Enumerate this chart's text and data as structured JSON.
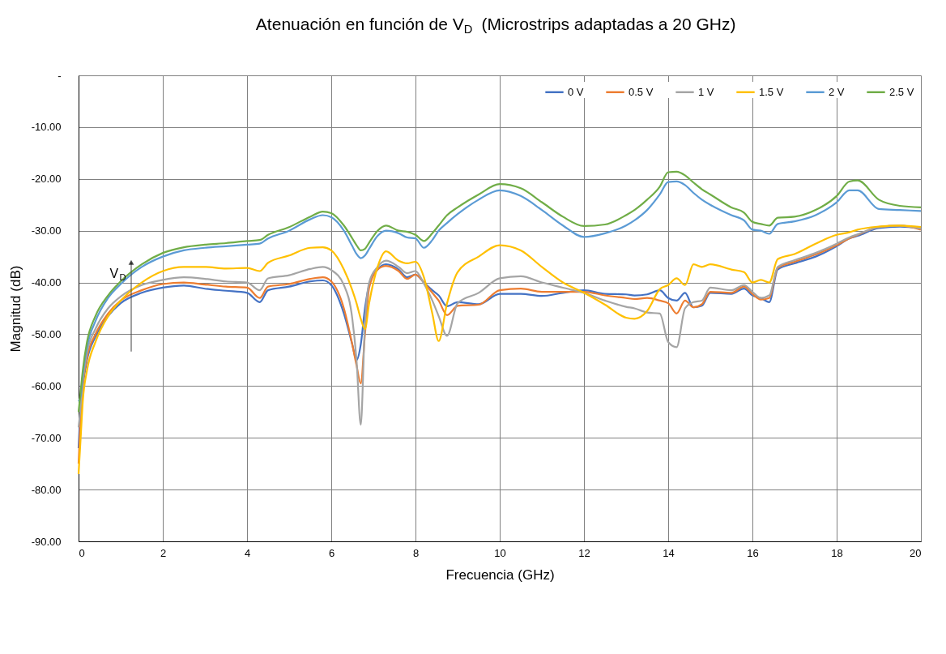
{
  "chart_data": {
    "type": "line",
    "title": "Atenuación en función de V$_{D}$  (Microstrips adaptadas a 20 GHz)",
    "xlabel": "Frecuencia (GHz)",
    "ylabel": "Magnitud (dB)",
    "x": [
      0,
      0.05,
      0.1,
      0.2,
      0.4,
      0.7,
      1,
      1.5,
      2,
      2.5,
      3,
      3.5,
      4,
      4.3,
      4.5,
      5,
      5.5,
      5.8,
      6,
      6.3,
      6.5,
      6.6,
      6.7,
      6.8,
      6.9,
      7.1,
      7.3,
      7.6,
      7.8,
      8,
      8.2,
      8.4,
      8.55,
      8.75,
      9,
      9.5,
      10,
      10.5,
      11,
      11.5,
      12,
      12.5,
      13,
      13.2,
      13.5,
      13.8,
      14,
      14.2,
      14.4,
      14.6,
      14.8,
      15,
      15.5,
      15.8,
      16,
      16.2,
      16.4,
      16.6,
      17,
      17.5,
      18,
      18.3,
      18.5,
      19,
      19.5,
      20
    ],
    "series": [
      {
        "name": "0 V",
        "color": "#4472c4",
        "values": [
          -72,
          -64,
          -60,
          -55,
          -50.5,
          -46.5,
          -44,
          -42,
          -41,
          -40.6,
          -41.2,
          -41.6,
          -42,
          -43.8,
          -41.5,
          -40.8,
          -39.8,
          -39.6,
          -40.5,
          -46,
          -52,
          -55,
          -52,
          -45,
          -40.5,
          -37.5,
          -36.5,
          -37.5,
          -39,
          -38.5,
          -40,
          -41.5,
          -42.5,
          -44.6,
          -43.8,
          -44.2,
          -42.2,
          -42.2,
          -42.6,
          -42,
          -41.5,
          -42.2,
          -42.3,
          -42.5,
          -42.3,
          -41.5,
          -43,
          -43.5,
          -42,
          -44.8,
          -44.5,
          -42,
          -42.2,
          -41.2,
          -42.5,
          -43,
          -43.8,
          -37.5,
          -36.3,
          -35,
          -33,
          -31.5,
          -31,
          -29.5,
          -29.2,
          -29.5
        ]
      },
      {
        "name": "0.5 V",
        "color": "#ed7d31",
        "values": [
          -75,
          -66,
          -60,
          -54.5,
          -50,
          -46,
          -43.5,
          -41.5,
          -40.3,
          -40,
          -40.4,
          -40.8,
          -41,
          -43,
          -40.8,
          -40.3,
          -39.3,
          -39,
          -39.8,
          -45,
          -52,
          -56,
          -59.5,
          -50,
          -41,
          -37.5,
          -36.8,
          -37.8,
          -39.3,
          -38.5,
          -40,
          -42,
          -43.5,
          -46.3,
          -44.5,
          -44.3,
          -41.5,
          -41.2,
          -41.8,
          -41.8,
          -41.8,
          -42.5,
          -43,
          -43.2,
          -43,
          -43.5,
          -44,
          -46,
          -43.5,
          -44.8,
          -44.2,
          -41.8,
          -42,
          -40.8,
          -42.2,
          -43.3,
          -43,
          -37.2,
          -36,
          -34.6,
          -32.8,
          -31.5,
          -30.8,
          -29.3,
          -29,
          -29.8
        ]
      },
      {
        "name": "1 V",
        "color": "#a5a5a5",
        "values": [
          -68,
          -64,
          -59,
          -53.5,
          -49,
          -45,
          -42.7,
          -40.5,
          -39.5,
          -39,
          -39.3,
          -39.8,
          -40,
          -41.5,
          -39.2,
          -38.6,
          -37.4,
          -37,
          -37.6,
          -40.5,
          -47,
          -55,
          -67.5,
          -48,
          -40,
          -37,
          -35.8,
          -37,
          -38.2,
          -37.8,
          -40.2,
          -43.5,
          -46.5,
          -50.3,
          -44,
          -42,
          -39.2,
          -38.8,
          -40,
          -41,
          -42,
          -43.5,
          -44.7,
          -45,
          -45.8,
          -46,
          -51.5,
          -52.5,
          -45,
          -43.8,
          -43.5,
          -41,
          -41.5,
          -40.5,
          -41.8,
          -43,
          -42.5,
          -37,
          -35.7,
          -34.3,
          -32.5,
          -31.3,
          -30.7,
          -29.3,
          -29,
          -29.6
        ]
      },
      {
        "name": "1.5 V",
        "color": "#ffc000",
        "values": [
          -77,
          -70,
          -63,
          -57,
          -51.5,
          -46.5,
          -43.5,
          -40,
          -37.8,
          -37,
          -37,
          -37.3,
          -37.2,
          -37.8,
          -36.2,
          -34.8,
          -33.3,
          -33.2,
          -33.8,
          -37.5,
          -41.5,
          -44,
          -47,
          -49,
          -44,
          -37,
          -34,
          -35.8,
          -36.3,
          -36,
          -39,
          -46,
          -51.3,
          -44,
          -38,
          -35,
          -32.8,
          -33.8,
          -37,
          -40,
          -42,
          -44.3,
          -46.8,
          -47,
          -45.5,
          -41.3,
          -40.5,
          -39.2,
          -40.5,
          -36.5,
          -37,
          -36.5,
          -37.5,
          -38,
          -40,
          -39.5,
          -40,
          -35.5,
          -34.5,
          -32.5,
          -30.8,
          -30.3,
          -29.8,
          -29.2,
          -29,
          -29.3
        ]
      },
      {
        "name": "2 V",
        "color": "#5b9bd5",
        "values": [
          -63,
          -62,
          -58,
          -52.5,
          -47.5,
          -43,
          -40.3,
          -37,
          -35,
          -33.8,
          -33.3,
          -33,
          -32.7,
          -32.5,
          -31.5,
          -30,
          -27.8,
          -27,
          -27.4,
          -30,
          -33,
          -34.5,
          -35.3,
          -34.8,
          -33.5,
          -31,
          -30,
          -30.5,
          -31.3,
          -31.5,
          -33.3,
          -31.8,
          -30,
          -28.5,
          -26.8,
          -24,
          -22.2,
          -23.3,
          -26,
          -29,
          -31.2,
          -30.5,
          -29,
          -28,
          -26,
          -23,
          -20.6,
          -20.5,
          -21.2,
          -22.7,
          -24,
          -25,
          -27,
          -28,
          -29.8,
          -30,
          -30.6,
          -28.7,
          -28.2,
          -27,
          -24.5,
          -22.2,
          -22.2,
          -25.8,
          -26,
          -26.2
        ]
      },
      {
        "name": "2.5 V",
        "color": "#70ad47",
        "values": [
          -65,
          -61,
          -57,
          -51.5,
          -46.5,
          -42.5,
          -39.8,
          -36.5,
          -34.3,
          -33.2,
          -32.7,
          -32.4,
          -32,
          -31.8,
          -30.8,
          -29.3,
          -27.3,
          -26.3,
          -26.6,
          -29,
          -31.5,
          -32.8,
          -33.8,
          -33.5,
          -32.3,
          -30,
          -29,
          -30,
          -30.2,
          -30.8,
          -32,
          -30.5,
          -29,
          -27,
          -25.5,
          -23,
          -21,
          -21.8,
          -24.5,
          -27.3,
          -29.1,
          -28.8,
          -27,
          -26,
          -24,
          -21.5,
          -18.7,
          -18.6,
          -19.3,
          -20.7,
          -22,
          -23,
          -25.5,
          -26.5,
          -28.3,
          -28.7,
          -29,
          -27.5,
          -27.3,
          -26,
          -23.3,
          -20.5,
          -20.3,
          -24,
          -25.2,
          -25.5
        ]
      }
    ],
    "xlim": [
      0,
      20
    ],
    "xticks": [
      0,
      2,
      4,
      6,
      8,
      10,
      12,
      14,
      16,
      18,
      20
    ],
    "ylim": [
      -90,
      0
    ],
    "yticks": [
      {
        "value": 0,
        "label": "-"
      },
      {
        "value": -10,
        "label": "-10.00"
      },
      {
        "value": -20,
        "label": "-20.00"
      },
      {
        "value": -30,
        "label": "-30.00"
      },
      {
        "value": -40,
        "label": "-40.00"
      },
      {
        "value": -50,
        "label": "-50.00"
      },
      {
        "value": -60,
        "label": "-60.00"
      },
      {
        "value": -70,
        "label": "-70.00"
      },
      {
        "value": -80,
        "label": "-80.00"
      },
      {
        "value": -90,
        "label": "-90.00"
      }
    ],
    "annotations": [
      {
        "text": "V$_{D}$",
        "x": 1.25,
        "y": -38
      }
    ],
    "grid": true,
    "legend": "top right",
    "marker": "none",
    "line_style": "solid"
  }
}
